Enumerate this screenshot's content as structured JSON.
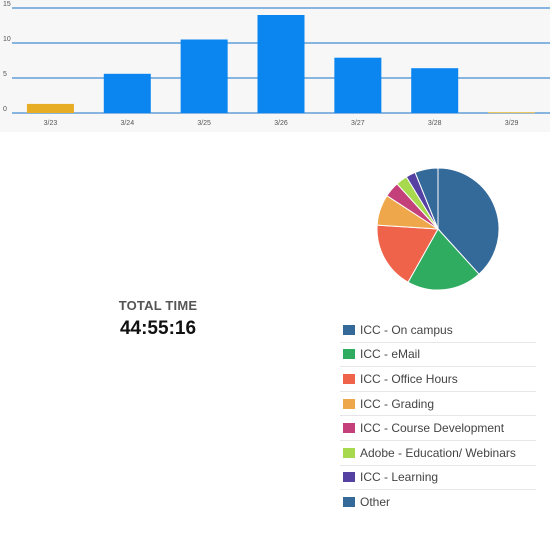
{
  "chart_data": [
    {
      "type": "bar",
      "categories": [
        "3/23",
        "3/24",
        "3/25",
        "3/26",
        "3/27",
        "3/28",
        "3/29"
      ],
      "values": [
        1.3,
        5.6,
        10.5,
        14.0,
        7.9,
        6.4,
        0.1
      ],
      "bar_colors": [
        "#e7ad24",
        "#0b86f0",
        "#0b86f0",
        "#0b86f0",
        "#0b86f0",
        "#0b86f0",
        "#e7ad24"
      ],
      "yticks": [
        0,
        5,
        10,
        15
      ],
      "ylim": [
        0,
        15
      ],
      "grid": true,
      "title": "",
      "xlabel": "",
      "ylabel": ""
    },
    {
      "type": "pie",
      "labels": [
        "ICC - On campus",
        "ICC - eMail",
        "ICC - Office Hours",
        "ICC - Grading",
        "ICC - Course Development",
        "Adobe - Education/ Webinars",
        "ICC - Learning",
        "Other"
      ],
      "values": [
        37.5,
        19.5,
        17.5,
        8.0,
        4.0,
        3.0,
        2.5,
        6.0
      ],
      "colors": [
        "#336a9a",
        "#2fac5f",
        "#ee634a",
        "#eea84b",
        "#c4407a",
        "#a6d94e",
        "#5541a2",
        "#336a9a"
      ],
      "legend": "bottom-right"
    }
  ],
  "summary": {
    "label": "TOTAL TIME",
    "value": "44:55:16"
  }
}
